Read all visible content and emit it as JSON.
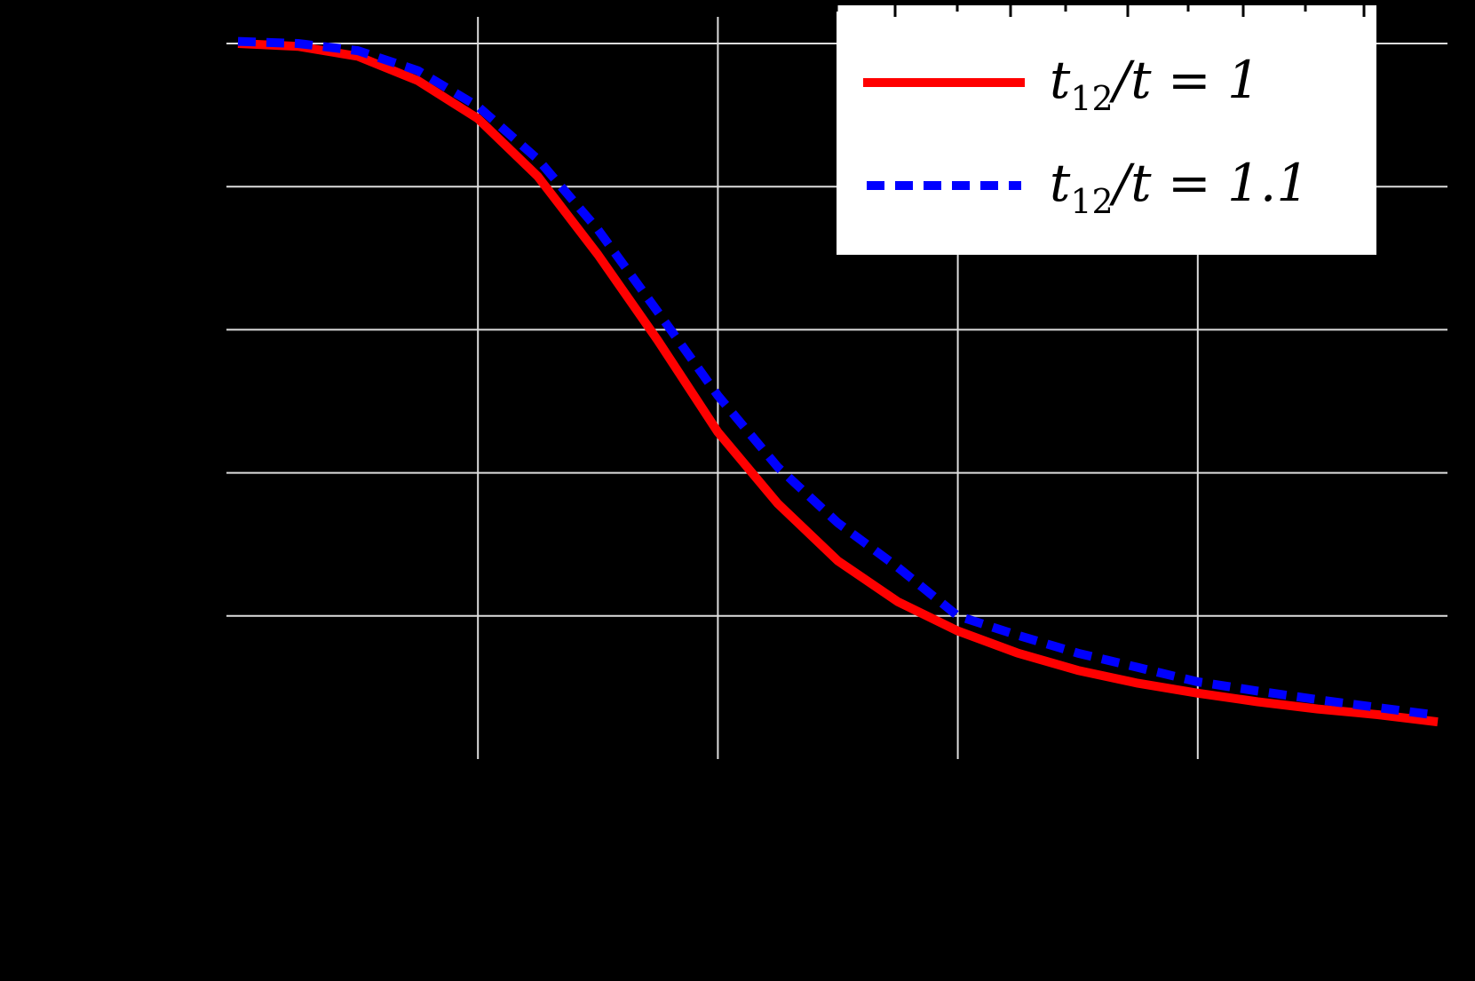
{
  "chart_data": {
    "type": "line",
    "title": "",
    "xlabel": "",
    "ylabel": "",
    "xlim": [
      -0.05,
      5.05
    ],
    "ylim": [
      0.0,
      1.037
    ],
    "x_ticks": [
      0,
      1,
      2,
      3,
      4,
      5
    ],
    "y_ticks": [
      0.0,
      0.2,
      0.4,
      0.6,
      0.8,
      1.0
    ],
    "x_tick_labels_visible": false,
    "y_tick_labels_visible": false,
    "grid": true,
    "legend_position": "upper right",
    "series": [
      {
        "name": "t12/t = 1",
        "legend_label_main": "t",
        "legend_label_sub": "12",
        "legend_label_rest": "/t = 1",
        "color": "#ff0000",
        "style": "solid",
        "x": [
          0,
          0.25,
          0.5,
          0.75,
          1.0,
          1.25,
          1.5,
          1.75,
          2.0,
          2.25,
          2.5,
          2.75,
          3.0,
          3.25,
          3.5,
          3.75,
          4.0,
          4.25,
          4.5,
          4.75,
          5.0
        ],
        "values": [
          1.0,
          0.996,
          0.982,
          0.948,
          0.895,
          0.814,
          0.705,
          0.585,
          0.457,
          0.357,
          0.277,
          0.22,
          0.179,
          0.148,
          0.124,
          0.106,
          0.092,
          0.08,
          0.07,
          0.062,
          0.052
        ]
      },
      {
        "name": "t12/t = 1.1",
        "legend_label_main": "t",
        "legend_label_sub": "12",
        "legend_label_rest": "/t = 1.1",
        "color": "#0000ff",
        "style": "dashed",
        "x": [
          0,
          0.25,
          0.5,
          0.75,
          1.0,
          1.25,
          1.5,
          1.75,
          2.0,
          2.25,
          2.5,
          2.75,
          3.0,
          3.25,
          3.5,
          3.75,
          4.0,
          4.25,
          4.5,
          4.75,
          5.0
        ],
        "values": [
          1.003,
          1.0,
          0.99,
          0.962,
          0.912,
          0.838,
          0.74,
          0.625,
          0.508,
          0.408,
          0.33,
          0.268,
          0.2,
          0.173,
          0.148,
          0.128,
          0.108,
          0.095,
          0.083,
          0.072,
          0.061
        ]
      }
    ]
  },
  "colors": {
    "background": "#000000",
    "grid": "#dddddd",
    "legend_bg": "#ffffff",
    "legend_text": "#000000"
  }
}
